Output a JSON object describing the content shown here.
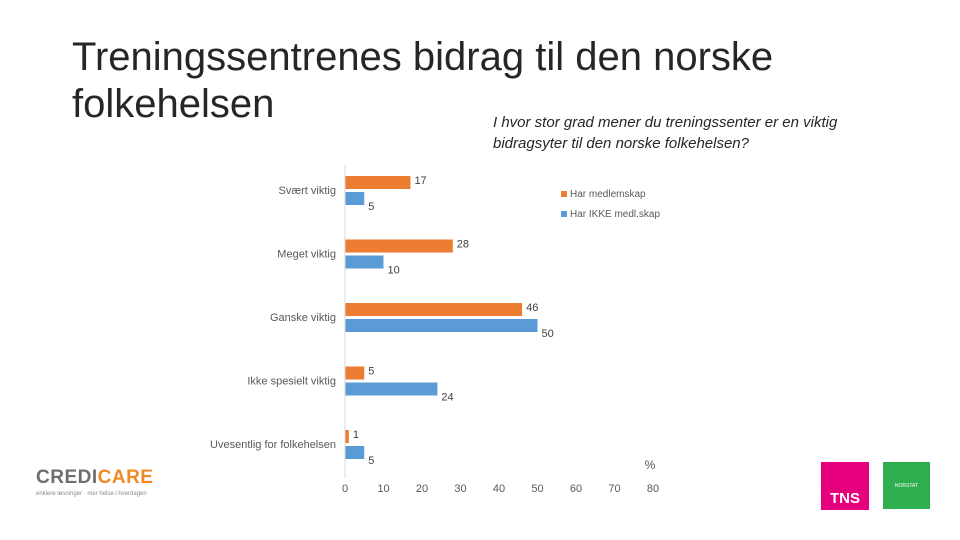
{
  "title": "Treningssentrenes bidrag til den norske folkehelsen",
  "subtitle": "I hvor stor grad mener du treningssenter er en viktig bidragsyter til den norske folkehelsen?",
  "colors": {
    "series1": "#ed7d31",
    "series2": "#5b9bd5",
    "tns": "#e6007e",
    "green": "#2fae4f"
  },
  "chart_data": {
    "type": "bar",
    "orientation": "horizontal",
    "categories": [
      "Svært viktig",
      "Meget viktig",
      "Ganske viktig",
      "Ikke spesielt viktig",
      "Uvesentlig for folkehelsen"
    ],
    "series": [
      {
        "name": "Har medlemskap",
        "values": [
          17,
          28,
          46,
          5,
          1
        ]
      },
      {
        "name": "Har IKKE medl.skap",
        "values": [
          5,
          10,
          50,
          24,
          5
        ]
      }
    ],
    "xlim": [
      0,
      80
    ],
    "xticks": [
      0,
      10,
      20,
      30,
      40,
      50,
      60,
      70,
      80
    ],
    "xunit": "%",
    "legend_position": "top-right",
    "grid": false
  },
  "logos": {
    "credicare_a": "CREDI",
    "credicare_b": "CARE",
    "credicare_sub": "enklere løsninger · mer helse i hverdagen",
    "tns": "TNS",
    "green": "NORSTAT"
  }
}
